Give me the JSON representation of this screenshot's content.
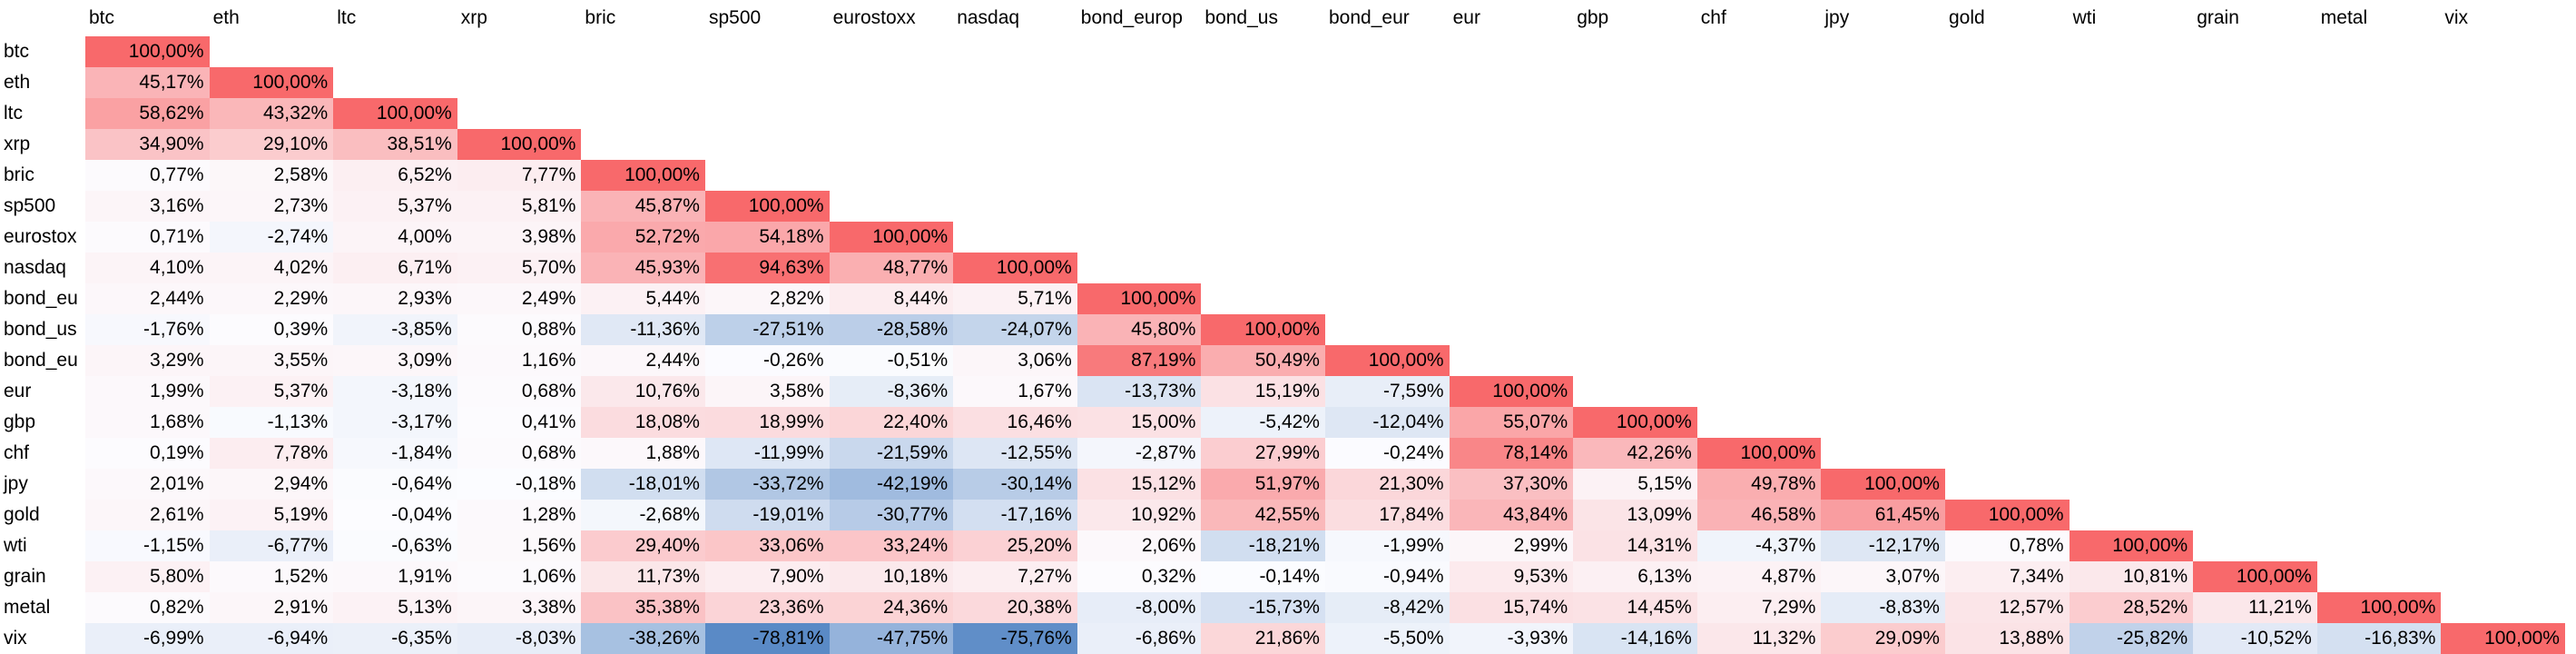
{
  "columns": [
    "btc",
    "eth",
    "ltc",
    "xrp",
    "bric",
    "sp500",
    "eurostoxx",
    "nasdaq",
    "bond_europ",
    "bond_us",
    "bond_eur",
    "eur",
    "gbp",
    "chf",
    "jpy",
    "gold",
    "wti",
    "grain",
    "metal",
    "vix"
  ],
  "rows": [
    {
      "label": "btc",
      "values": [
        "100,00%"
      ]
    },
    {
      "label": "eth",
      "values": [
        "45,17%",
        "100,00%"
      ]
    },
    {
      "label": "ltc",
      "values": [
        "58,62%",
        "43,32%",
        "100,00%"
      ]
    },
    {
      "label": "xrp",
      "values": [
        "34,90%",
        "29,10%",
        "38,51%",
        "100,00%"
      ]
    },
    {
      "label": "bric",
      "values": [
        "0,77%",
        "2,58%",
        "6,52%",
        "7,77%",
        "100,00%"
      ]
    },
    {
      "label": "sp500",
      "values": [
        "3,16%",
        "2,73%",
        "5,37%",
        "5,81%",
        "45,87%",
        "100,00%"
      ]
    },
    {
      "label": "eurostox",
      "values": [
        "0,71%",
        "-2,74%",
        "4,00%",
        "3,98%",
        "52,72%",
        "54,18%",
        "100,00%"
      ]
    },
    {
      "label": "nasdaq",
      "values": [
        "4,10%",
        "4,02%",
        "6,71%",
        "5,70%",
        "45,93%",
        "94,63%",
        "48,77%",
        "100,00%"
      ]
    },
    {
      "label": "bond_eu",
      "values": [
        "2,44%",
        "2,29%",
        "2,93%",
        "2,49%",
        "5,44%",
        "2,82%",
        "8,44%",
        "5,71%",
        "100,00%"
      ]
    },
    {
      "label": "bond_us",
      "values": [
        "-1,76%",
        "0,39%",
        "-3,85%",
        "0,88%",
        "-11,36%",
        "-27,51%",
        "-28,58%",
        "-24,07%",
        "45,80%",
        "100,00%"
      ]
    },
    {
      "label": "bond_eu",
      "values": [
        "3,29%",
        "3,55%",
        "3,09%",
        "1,16%",
        "2,44%",
        "-0,26%",
        "-0,51%",
        "3,06%",
        "87,19%",
        "50,49%",
        "100,00%"
      ]
    },
    {
      "label": "eur",
      "values": [
        "1,99%",
        "5,37%",
        "-3,18%",
        "0,68%",
        "10,76%",
        "3,58%",
        "-8,36%",
        "1,67%",
        "-13,73%",
        "15,19%",
        "-7,59%",
        "100,00%"
      ]
    },
    {
      "label": "gbp",
      "values": [
        "1,68%",
        "-1,13%",
        "-3,17%",
        "0,41%",
        "18,08%",
        "18,99%",
        "22,40%",
        "16,46%",
        "15,00%",
        "-5,42%",
        "-12,04%",
        "55,07%",
        "100,00%"
      ]
    },
    {
      "label": "chf",
      "values": [
        "0,19%",
        "7,78%",
        "-1,84%",
        "0,68%",
        "1,88%",
        "-11,99%",
        "-21,59%",
        "-12,55%",
        "-2,87%",
        "27,99%",
        "-0,24%",
        "78,14%",
        "42,26%",
        "100,00%"
      ]
    },
    {
      "label": "jpy",
      "values": [
        "2,01%",
        "2,94%",
        "-0,64%",
        "-0,18%",
        "-18,01%",
        "-33,72%",
        "-42,19%",
        "-30,14%",
        "15,12%",
        "51,97%",
        "21,30%",
        "37,30%",
        "5,15%",
        "49,78%",
        "100,00%"
      ]
    },
    {
      "label": "gold",
      "values": [
        "2,61%",
        "5,19%",
        "-0,04%",
        "1,28%",
        "-2,68%",
        "-19,01%",
        "-30,77%",
        "-17,16%",
        "10,92%",
        "42,55%",
        "17,84%",
        "43,84%",
        "13,09%",
        "46,58%",
        "61,45%",
        "100,00%"
      ]
    },
    {
      "label": "wti",
      "values": [
        "-1,15%",
        "-6,77%",
        "-0,63%",
        "1,56%",
        "29,40%",
        "33,06%",
        "33,24%",
        "25,20%",
        "2,06%",
        "-18,21%",
        "-1,99%",
        "2,99%",
        "14,31%",
        "-4,37%",
        "-12,17%",
        "0,78%",
        "100,00%"
      ]
    },
    {
      "label": "grain",
      "values": [
        "5,80%",
        "1,52%",
        "1,91%",
        "1,06%",
        "11,73%",
        "7,90%",
        "10,18%",
        "7,27%",
        "0,32%",
        "-0,14%",
        "-0,94%",
        "9,53%",
        "6,13%",
        "4,87%",
        "3,07%",
        "7,34%",
        "10,81%",
        "100,00%"
      ]
    },
    {
      "label": "metal",
      "values": [
        "0,82%",
        "2,91%",
        "5,13%",
        "3,38%",
        "35,38%",
        "23,36%",
        "24,36%",
        "20,38%",
        "-8,00%",
        "-15,73%",
        "-8,42%",
        "15,74%",
        "14,45%",
        "7,29%",
        "-8,83%",
        "12,57%",
        "28,52%",
        "11,21%",
        "100,00%"
      ]
    },
    {
      "label": "vix",
      "values": [
        "-6,99%",
        "-6,94%",
        "-6,35%",
        "-8,03%",
        "-38,26%",
        "-78,81%",
        "-47,75%",
        "-75,76%",
        "-6,86%",
        "21,86%",
        "-5,50%",
        "-3,93%",
        "-14,16%",
        "11,32%",
        "29,09%",
        "13,88%",
        "-25,82%",
        "-10,52%",
        "-16,83%",
        "100,00%"
      ]
    }
  ],
  "colors": {
    "positive_max": "#F8696B",
    "negative_max": "#5A8AC6",
    "neutral": "#FCFCFF",
    "text": "#000000",
    "background": "#FFFFFF"
  }
}
